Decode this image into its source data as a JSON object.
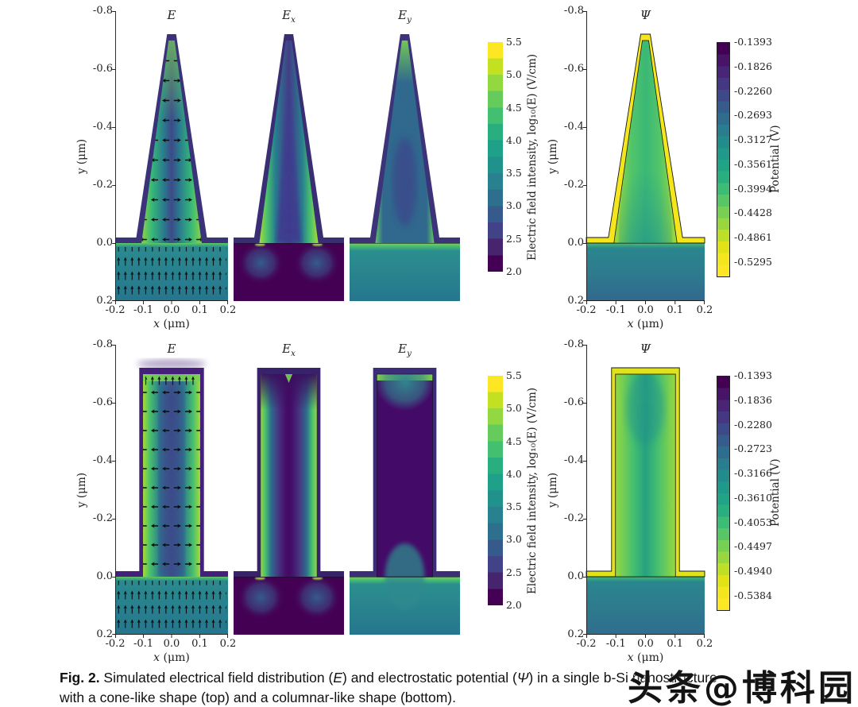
{
  "watermark": "头条@博科园",
  "titles": {
    "e": "E",
    "sub_x": "x",
    "sub_y": "y",
    "psi": "Ψ"
  },
  "axis": {
    "x_label_var": "x",
    "x_label_unit": " (μm)",
    "y_label": "y (μm)",
    "x_ticks": [
      "-0.2",
      "-0.1",
      "0.0",
      "0.1",
      "0.2"
    ],
    "y_ticks": [
      "-0.8",
      "-0.6",
      "-0.4",
      "-0.2",
      "0.0",
      "0.2"
    ]
  },
  "colorbar_efield": {
    "label": "Electric field intensity, log₁₀(E)  (V/cm)",
    "ticks": [
      "5.5",
      "5.0",
      "4.5",
      "4.0",
      "3.5",
      "3.0",
      "2.5",
      "2.0"
    ]
  },
  "colorbar_potential_label": "Potential (V)",
  "rows": {
    "top": {
      "shape": "cone-like",
      "potential_ticks": [
        "-0.1393",
        "-0.1826",
        "-0.2260",
        "-0.2693",
        "-0.3127",
        "-0.3561",
        "-0.3994",
        "-0.4428",
        "-0.4861",
        "-0.5295"
      ]
    },
    "bottom": {
      "shape": "columnar-like",
      "potential_ticks": [
        "-0.1393",
        "-0.1836",
        "-0.2280",
        "-0.2723",
        "-0.3166",
        "-0.3610",
        "-0.4053",
        "-0.4497",
        "-0.4940",
        "-0.5384"
      ]
    }
  },
  "caption": {
    "bold": "Fig. 2.",
    "seg1": " Simulated electrical field distribution (",
    "e": "E",
    "seg2": ") and electrostatic potential (",
    "psi": "Ψ",
    "seg3": ") in a single b-Si nanostructure",
    "line2": "with a cone-like shape (top) and  a columnar-like shape (bottom)."
  },
  "chart_data": [
    {
      "type": "heatmap",
      "row": "top",
      "nanostructure": "cone-like",
      "panel": "E",
      "quantity": "electric field magnitude with direction arrows",
      "colormap": "viridis",
      "x_range_um": [
        -0.2,
        0.2
      ],
      "y_range_um": [
        -0.8,
        0.2
      ],
      "colorbar_label": "Electric field intensity, log10(E) (V/cm)",
      "colorbar_ticks": [
        2.0,
        2.5,
        3.0,
        3.5,
        4.0,
        4.5,
        5.0,
        5.5
      ],
      "geometry": {
        "base_halfwidth_um": 0.1,
        "height_um": 0.7,
        "shell_thickness_um": 0.02
      }
    },
    {
      "type": "heatmap",
      "row": "top",
      "nanostructure": "cone-like",
      "panel": "Ex",
      "quantity": "horizontal electric field component",
      "colormap": "viridis",
      "x_range_um": [
        -0.2,
        0.2
      ],
      "y_range_um": [
        -0.8,
        0.2
      ],
      "colorbar_ticks": [
        2.0,
        2.5,
        3.0,
        3.5,
        4.0,
        4.5,
        5.0,
        5.5
      ]
    },
    {
      "type": "heatmap",
      "row": "top",
      "nanostructure": "cone-like",
      "panel": "Ey",
      "quantity": "vertical electric field component",
      "colormap": "viridis",
      "x_range_um": [
        -0.2,
        0.2
      ],
      "y_range_um": [
        -0.8,
        0.2
      ],
      "colorbar_ticks": [
        2.0,
        2.5,
        3.0,
        3.5,
        4.0,
        4.5,
        5.0,
        5.5
      ]
    },
    {
      "type": "heatmap",
      "row": "top",
      "nanostructure": "cone-like",
      "panel": "Ψ",
      "quantity": "electrostatic potential (V)",
      "colormap": "viridis_r",
      "x_range_um": [
        -0.2,
        0.2
      ],
      "y_range_um": [
        -0.8,
        0.2
      ],
      "colorbar_label": "Potential (V)",
      "colorbar_ticks": [
        -0.1393,
        -0.1826,
        -0.226,
        -0.2693,
        -0.3127,
        -0.3561,
        -0.3994,
        -0.4428,
        -0.4861,
        -0.5295
      ]
    },
    {
      "type": "heatmap",
      "row": "bottom",
      "nanostructure": "columnar-like",
      "panel": "E",
      "quantity": "electric field magnitude with direction arrows",
      "colormap": "viridis",
      "x_range_um": [
        -0.2,
        0.2
      ],
      "y_range_um": [
        -0.8,
        0.2
      ],
      "colorbar_label": "Electric field intensity, log10(E) (V/cm)",
      "colorbar_ticks": [
        2.0,
        2.5,
        3.0,
        3.5,
        4.0,
        4.5,
        5.0,
        5.5
      ],
      "geometry": {
        "halfwidth_um": 0.1,
        "height_um": 0.7,
        "shell_thickness_um": 0.02
      }
    },
    {
      "type": "heatmap",
      "row": "bottom",
      "nanostructure": "columnar-like",
      "panel": "Ex",
      "quantity": "horizontal electric field component",
      "colormap": "viridis",
      "x_range_um": [
        -0.2,
        0.2
      ],
      "y_range_um": [
        -0.8,
        0.2
      ],
      "colorbar_ticks": [
        2.0,
        2.5,
        3.0,
        3.5,
        4.0,
        4.5,
        5.0,
        5.5
      ]
    },
    {
      "type": "heatmap",
      "row": "bottom",
      "nanostructure": "columnar-like",
      "panel": "Ey",
      "quantity": "vertical electric field component",
      "colormap": "viridis",
      "x_range_um": [
        -0.2,
        0.2
      ],
      "y_range_um": [
        -0.8,
        0.2
      ],
      "colorbar_ticks": [
        2.0,
        2.5,
        3.0,
        3.5,
        4.0,
        4.5,
        5.0,
        5.5
      ]
    },
    {
      "type": "heatmap",
      "row": "bottom",
      "nanostructure": "columnar-like",
      "panel": "Ψ",
      "quantity": "electrostatic potential (V)",
      "colormap": "viridis_r",
      "x_range_um": [
        -0.2,
        0.2
      ],
      "y_range_um": [
        -0.8,
        0.2
      ],
      "colorbar_label": "Potential (V)",
      "colorbar_ticks": [
        -0.1393,
        -0.1836,
        -0.228,
        -0.2723,
        -0.3166,
        -0.361,
        -0.4053,
        -0.4497,
        -0.494,
        -0.5384
      ]
    }
  ]
}
